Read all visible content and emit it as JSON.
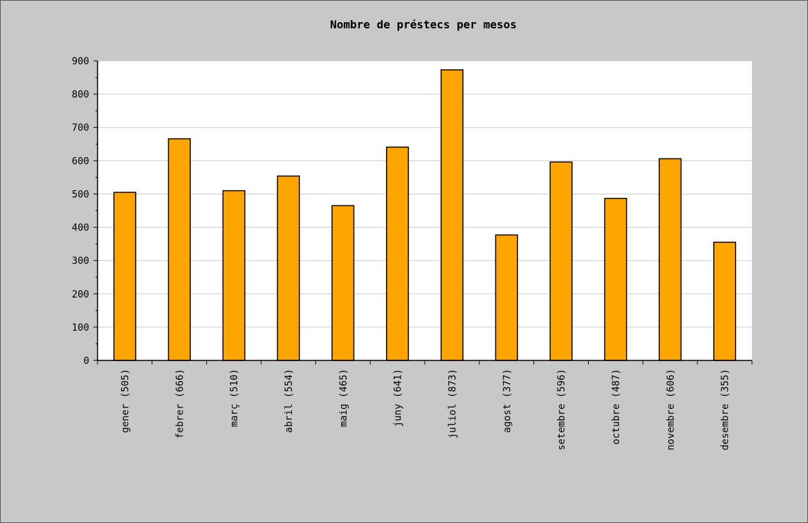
{
  "chart_data": {
    "type": "bar",
    "title": "Nombre de préstecs per mesos",
    "xlabel": "",
    "ylabel": "",
    "categories": [
      "gener (505)",
      "febrer (666)",
      "març (510)",
      "abril (554)",
      "maig (465)",
      "juny (641)",
      "juliol (873)",
      "agost (377)",
      "setembre (596)",
      "octubre (487)",
      "novembre (606)",
      "desembre (355)"
    ],
    "values": [
      505,
      666,
      510,
      554,
      465,
      641,
      873,
      377,
      596,
      487,
      606,
      355
    ],
    "ylim": [
      0,
      900
    ],
    "y_ticks": [
      "0",
      "100",
      "200",
      "300",
      "400",
      "500",
      "600",
      "700",
      "800",
      "900"
    ],
    "grid": true,
    "legend": "none",
    "colors": {
      "bar_fill": "#ffa500",
      "bar_stroke": "#000000",
      "plot_background": "#ffffff",
      "page_background": "#c8c8c8",
      "grid": "#cccccc"
    }
  }
}
